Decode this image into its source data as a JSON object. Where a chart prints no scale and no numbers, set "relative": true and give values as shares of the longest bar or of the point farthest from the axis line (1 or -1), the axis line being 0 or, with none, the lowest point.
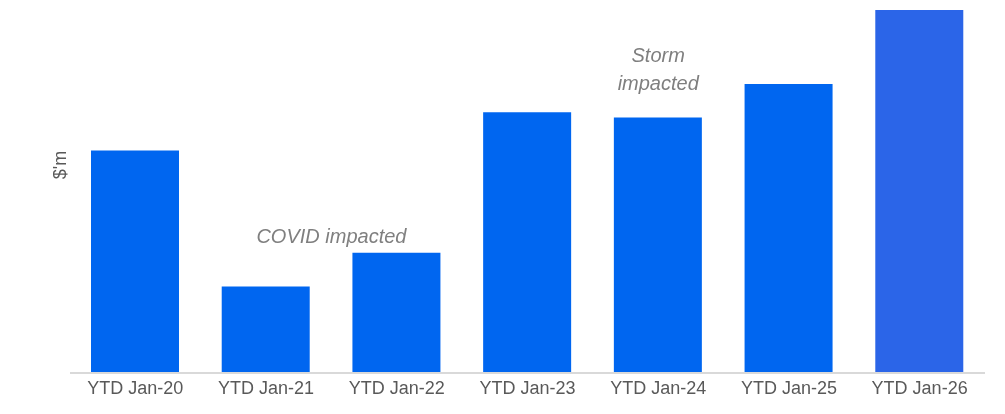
{
  "chart_data": {
    "type": "bar",
    "relative": true,
    "ylabel": "$'m",
    "categories": [
      "YTD Jan-20",
      "YTD Jan-21",
      "YTD Jan-22",
      "YTD Jan-23",
      "YTD Jan-24",
      "YTD Jan-25",
      "YTD Jan-26"
    ],
    "values": [
      0.613,
      0.238,
      0.331,
      0.718,
      0.704,
      0.796,
      1
    ],
    "colors": [
      "#0066f0",
      "#0066f0",
      "#0066f0",
      "#0066f0",
      "#0066f0",
      "#0066f0",
      "#2b65e8"
    ],
    "annotations": [
      "COVID impacted",
      "Storm impacted"
    ],
    "grid": false,
    "legend": false
  }
}
